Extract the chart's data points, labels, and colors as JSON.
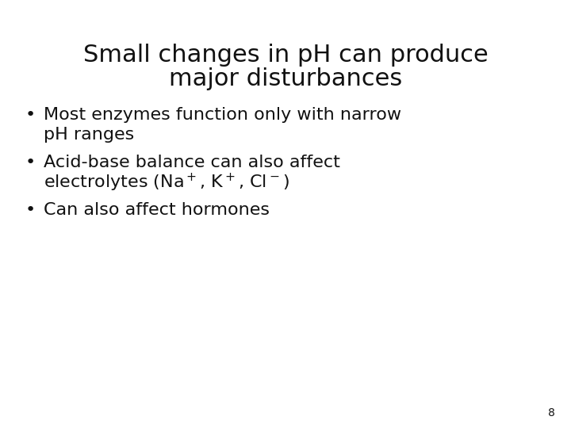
{
  "title_line1": "Small changes in pH can produce",
  "title_line2": "major disturbances",
  "bullet1_line1": "Most enzymes function only with narrow",
  "bullet1_line2": "pH ranges",
  "bullet2_line1": "Acid-base balance can also affect",
  "bullet2_line2": "electrolytes (Na⁺, K⁺, Cl⁻)",
  "bullet3": "Can also affect hormones",
  "page_number": "8",
  "bg_color": "#ffffff",
  "text_color": "#111111",
  "title_fontsize": 22,
  "bullet_fontsize": 16,
  "page_num_fontsize": 10
}
